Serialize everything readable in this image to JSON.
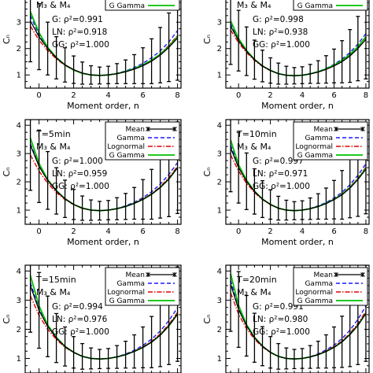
{
  "chart_data": [
    {
      "type": "line",
      "annotations": [
        "M₃ & M₄",
        "G: ρ²=0.991",
        "LN: ρ²=0.918",
        "GG: ρ²=1.000"
      ],
      "legend": [
        "G Gamma"
      ],
      "xlabel": "Moment order, n",
      "ylabel": "Cₙ",
      "xticks": [
        "0",
        "2",
        "4",
        "6",
        "8"
      ],
      "yticks": [
        "1",
        "2",
        "3",
        "4"
      ],
      "xlim": [
        -0.8,
        8.2
      ],
      "ylim": [
        0.5,
        4.2
      ],
      "x": [
        -0.5,
        0,
        0.5,
        1,
        1.5,
        2,
        2.5,
        3,
        3.5,
        4,
        4.5,
        5,
        5.5,
        6,
        6.5,
        7,
        7.5,
        8
      ],
      "series": [
        {
          "name": "Mean",
          "values": [
            3.05,
            2.45,
            2.0,
            1.65,
            1.38,
            1.2,
            1.07,
            1.0,
            0.98,
            1.0,
            1.05,
            1.12,
            1.22,
            1.35,
            1.52,
            1.75,
            2.05,
            2.4
          ],
          "err": [
            1.55,
            1.25,
            1.0,
            0.8,
            0.65,
            0.52,
            0.42,
            0.35,
            0.32,
            0.33,
            0.38,
            0.45,
            0.55,
            0.68,
            0.85,
            1.05,
            1.3,
            1.6
          ]
        },
        {
          "name": "Gamma",
          "values": [
            3.25,
            2.52,
            2.02,
            1.65,
            1.38,
            1.19,
            1.06,
            1.0,
            0.98,
            1.0,
            1.06,
            1.15,
            1.28,
            1.44,
            1.65,
            1.91,
            2.25,
            2.68
          ]
        },
        {
          "name": "Lognormal",
          "values": [
            2.85,
            2.32,
            1.92,
            1.61,
            1.36,
            1.18,
            1.06,
            1.0,
            0.98,
            1.0,
            1.05,
            1.13,
            1.24,
            1.38,
            1.56,
            1.8,
            2.12,
            2.5
          ]
        },
        {
          "name": "G Gamma",
          "values": [
            3.4,
            2.6,
            2.05,
            1.66,
            1.38,
            1.19,
            1.06,
            1.0,
            0.98,
            1.0,
            1.05,
            1.13,
            1.24,
            1.38,
            1.56,
            1.79,
            2.08,
            2.45
          ]
        }
      ]
    },
    {
      "type": "line",
      "annotations": [
        "M₃ & M₄",
        "G: ρ²=0.998",
        "LN: ρ²=0.938",
        "GG: ρ²=1.000"
      ],
      "legend": [
        "G Gamma"
      ],
      "xlabel": "Moment order, n",
      "ylabel": "Cₙ",
      "xticks": [
        "0",
        "2",
        "4",
        "6",
        "8"
      ],
      "yticks": [
        "1",
        "2",
        "3",
        "4"
      ],
      "xlim": [
        -0.8,
        8.2
      ],
      "ylim": [
        0.5,
        4.2
      ],
      "x": [
        -0.5,
        0,
        0.5,
        1,
        1.5,
        2,
        2.5,
        3,
        3.5,
        4,
        4.5,
        5,
        5.5,
        6,
        6.5,
        7,
        7.5,
        8
      ],
      "series": [
        {
          "name": "Mean",
          "values": [
            2.85,
            2.3,
            1.9,
            1.58,
            1.34,
            1.17,
            1.05,
            0.99,
            0.97,
            0.99,
            1.04,
            1.11,
            1.21,
            1.34,
            1.5,
            1.72,
            2.0,
            2.35
          ],
          "err": [
            1.45,
            1.15,
            0.92,
            0.74,
            0.6,
            0.48,
            0.4,
            0.34,
            0.31,
            0.32,
            0.36,
            0.43,
            0.52,
            0.64,
            0.8,
            1.0,
            1.22,
            1.5
          ]
        },
        {
          "name": "Gamma",
          "values": [
            2.95,
            2.35,
            1.92,
            1.59,
            1.34,
            1.17,
            1.05,
            0.99,
            0.97,
            0.99,
            1.05,
            1.13,
            1.25,
            1.4,
            1.6,
            1.85,
            2.17,
            2.57
          ]
        },
        {
          "name": "Lognormal",
          "values": [
            2.7,
            2.22,
            1.85,
            1.55,
            1.32,
            1.16,
            1.05,
            0.99,
            0.97,
            0.99,
            1.04,
            1.12,
            1.22,
            1.36,
            1.54,
            1.77,
            2.06,
            2.42
          ]
        },
        {
          "name": "G Gamma",
          "values": [
            3.05,
            2.38,
            1.93,
            1.59,
            1.34,
            1.17,
            1.05,
            0.99,
            0.97,
            0.99,
            1.04,
            1.12,
            1.23,
            1.37,
            1.55,
            1.78,
            2.07,
            2.45
          ]
        }
      ]
    },
    {
      "type": "line",
      "annotations": [
        "T=5min",
        "M₃ & M₄",
        "G: ρ²=1.000",
        "LN: ρ²=0.959",
        "GG: ρ²=1.000"
      ],
      "legend": [
        "Mean",
        "Gamma",
        "Lognormal",
        "G Gamma"
      ],
      "xlabel": "Moment order, n",
      "ylabel": "Cₙ",
      "xticks": [
        "0",
        "2",
        "4",
        "6",
        "8"
      ],
      "yticks": [
        "1",
        "2",
        "3",
        "4"
      ],
      "xlim": [
        -0.8,
        8.2
      ],
      "ylim": [
        0.5,
        4.2
      ],
      "x": [
        -0.5,
        0,
        0.5,
        1,
        1.5,
        2,
        2.5,
        3,
        3.5,
        4,
        4.5,
        5,
        5.5,
        6,
        6.5,
        7,
        7.5,
        8
      ],
      "series": [
        {
          "name": "Mean",
          "values": [
            3.3,
            2.55,
            2.05,
            1.68,
            1.4,
            1.2,
            1.07,
            1.0,
            0.98,
            1.0,
            1.05,
            1.13,
            1.24,
            1.38,
            1.56,
            1.8,
            2.1,
            2.5
          ],
          "err": [
            1.6,
            1.28,
            1.02,
            0.82,
            0.66,
            0.53,
            0.43,
            0.36,
            0.33,
            0.34,
            0.39,
            0.46,
            0.56,
            0.7,
            0.88,
            1.08,
            1.33,
            1.62
          ]
        },
        {
          "name": "Gamma",
          "values": [
            3.35,
            2.57,
            2.05,
            1.68,
            1.4,
            1.2,
            1.07,
            1.0,
            0.98,
            1.0,
            1.06,
            1.15,
            1.28,
            1.44,
            1.65,
            1.92,
            2.26,
            2.68
          ]
        },
        {
          "name": "Lognormal",
          "values": [
            2.95,
            2.38,
            1.95,
            1.62,
            1.37,
            1.19,
            1.06,
            1.0,
            0.98,
            1.0,
            1.05,
            1.13,
            1.25,
            1.4,
            1.58,
            1.83,
            2.15,
            2.55
          ]
        },
        {
          "name": "G Gamma",
          "values": [
            3.55,
            2.65,
            2.08,
            1.69,
            1.4,
            1.2,
            1.07,
            1.0,
            0.98,
            1.0,
            1.05,
            1.13,
            1.24,
            1.38,
            1.56,
            1.8,
            2.1,
            2.5
          ]
        }
      ]
    },
    {
      "type": "line",
      "annotations": [
        "T=10min",
        "M₃ & M₄",
        "G: ρ²=0.997",
        "LN: ρ²=0.971",
        "GG: ρ²=1.000"
      ],
      "legend": [
        "Mean",
        "Gamma",
        "Lognormal",
        "G Gamma"
      ],
      "xlabel": "Moment order, n",
      "ylabel": "Cₙ",
      "xticks": [
        "0",
        "2",
        "4",
        "6",
        "8"
      ],
      "yticks": [
        "1",
        "2",
        "3",
        "4"
      ],
      "xlim": [
        -0.8,
        8.2
      ],
      "ylim": [
        0.5,
        4.2
      ],
      "x": [
        -0.5,
        0,
        0.5,
        1,
        1.5,
        2,
        2.5,
        3,
        3.5,
        4,
        4.5,
        5,
        5.5,
        6,
        6.5,
        7,
        7.5,
        8
      ],
      "series": [
        {
          "name": "Mean",
          "values": [
            3.2,
            2.5,
            2.02,
            1.66,
            1.39,
            1.2,
            1.07,
            1.0,
            0.98,
            1.0,
            1.05,
            1.13,
            1.23,
            1.37,
            1.54,
            1.78,
            2.08,
            2.45
          ],
          "err": [
            1.55,
            1.25,
            1.0,
            0.8,
            0.65,
            0.52,
            0.42,
            0.35,
            0.32,
            0.33,
            0.38,
            0.45,
            0.55,
            0.68,
            0.86,
            1.05,
            1.3,
            1.58
          ]
        },
        {
          "name": "Gamma",
          "values": [
            3.3,
            2.54,
            2.03,
            1.66,
            1.39,
            1.2,
            1.07,
            1.0,
            0.98,
            1.0,
            1.06,
            1.15,
            1.27,
            1.43,
            1.63,
            1.9,
            2.23,
            2.64
          ]
        },
        {
          "name": "Lognormal",
          "values": [
            2.95,
            2.38,
            1.95,
            1.62,
            1.37,
            1.19,
            1.06,
            1.0,
            0.98,
            1.0,
            1.05,
            1.13,
            1.24,
            1.39,
            1.57,
            1.82,
            2.13,
            2.52
          ]
        },
        {
          "name": "G Gamma",
          "values": [
            3.48,
            2.6,
            2.06,
            1.67,
            1.39,
            1.2,
            1.07,
            1.0,
            0.98,
            1.0,
            1.05,
            1.13,
            1.24,
            1.38,
            1.56,
            1.8,
            2.1,
            2.48
          ]
        }
      ]
    },
    {
      "type": "line",
      "annotations": [
        "T=15min",
        "M₃ & M₄",
        "G: ρ²=0.994",
        "LN: ρ²=0.976",
        "GG: ρ²=1.000"
      ],
      "legend": [
        "Mean",
        "Gamma",
        "Lognormal",
        "G Gamma"
      ],
      "xlabel": "",
      "ylabel": "Cₙ",
      "xticks": [],
      "yticks": [
        "1",
        "2",
        "3",
        "4"
      ],
      "xlim": [
        -0.8,
        8.2
      ],
      "ylim": [
        0.5,
        4.2
      ],
      "x": [
        -0.5,
        0,
        0.5,
        1,
        1.5,
        2,
        2.5,
        3,
        3.5,
        4,
        4.5,
        5,
        5.5,
        6,
        6.5,
        7,
        7.5,
        8
      ],
      "series": [
        {
          "name": "Mean",
          "values": [
            3.5,
            2.65,
            2.1,
            1.7,
            1.41,
            1.21,
            1.07,
            1.0,
            0.98,
            1.0,
            1.05,
            1.13,
            1.24,
            1.38,
            1.56,
            1.8,
            2.12,
            2.52
          ],
          "err": [
            1.6,
            1.3,
            1.04,
            0.84,
            0.67,
            0.54,
            0.44,
            0.36,
            0.33,
            0.34,
            0.39,
            0.46,
            0.57,
            0.7,
            0.88,
            1.08,
            1.33,
            1.62
          ]
        },
        {
          "name": "Gamma",
          "values": [
            3.6,
            2.7,
            2.12,
            1.71,
            1.41,
            1.21,
            1.07,
            1.0,
            0.98,
            1.0,
            1.06,
            1.15,
            1.28,
            1.45,
            1.66,
            1.94,
            2.3,
            2.74
          ]
        },
        {
          "name": "Lognormal",
          "values": [
            3.15,
            2.48,
            2.0,
            1.65,
            1.38,
            1.2,
            1.07,
            1.0,
            0.98,
            1.0,
            1.05,
            1.13,
            1.25,
            1.4,
            1.59,
            1.84,
            2.17,
            2.58
          ]
        },
        {
          "name": "G Gamma",
          "values": [
            3.85,
            2.8,
            2.15,
            1.72,
            1.41,
            1.21,
            1.07,
            1.0,
            0.98,
            1.0,
            1.05,
            1.13,
            1.24,
            1.38,
            1.56,
            1.8,
            2.12,
            2.52
          ]
        }
      ]
    },
    {
      "type": "line",
      "annotations": [
        "T=20min",
        "M₃ & M₄",
        "G: ρ²=0.991",
        "LN: ρ²=0.980",
        "GG: ρ²=1.000"
      ],
      "legend": [
        "Mean",
        "Gamma",
        "Lognormal",
        "G Gamma"
      ],
      "xlabel": "",
      "ylabel": "Cₙ",
      "xticks": [],
      "yticks": [
        "1",
        "2",
        "3",
        "4"
      ],
      "xlim": [
        -0.8,
        8.2
      ],
      "ylim": [
        0.5,
        4.2
      ],
      "x": [
        -0.5,
        0,
        0.5,
        1,
        1.5,
        2,
        2.5,
        3,
        3.5,
        4,
        4.5,
        5,
        5.5,
        6,
        6.5,
        7,
        7.5,
        8
      ],
      "series": [
        {
          "name": "Mean",
          "values": [
            3.55,
            2.68,
            2.12,
            1.71,
            1.42,
            1.21,
            1.07,
            1.0,
            0.98,
            1.0,
            1.05,
            1.13,
            1.24,
            1.38,
            1.57,
            1.82,
            2.14,
            2.55
          ],
          "err": [
            1.62,
            1.3,
            1.04,
            0.84,
            0.67,
            0.54,
            0.44,
            0.36,
            0.33,
            0.34,
            0.39,
            0.46,
            0.57,
            0.7,
            0.88,
            1.1,
            1.35,
            1.65
          ]
        },
        {
          "name": "Gamma",
          "values": [
            3.68,
            2.73,
            2.13,
            1.72,
            1.42,
            1.21,
            1.07,
            1.0,
            0.98,
            1.0,
            1.06,
            1.16,
            1.29,
            1.46,
            1.68,
            1.97,
            2.34,
            2.8
          ]
        },
        {
          "name": "Lognormal",
          "values": [
            3.25,
            2.52,
            2.02,
            1.66,
            1.39,
            1.2,
            1.07,
            1.0,
            0.98,
            1.0,
            1.05,
            1.14,
            1.26,
            1.41,
            1.6,
            1.86,
            2.2,
            2.62
          ]
        },
        {
          "name": "G Gamma",
          "values": [
            3.9,
            2.82,
            2.16,
            1.73,
            1.42,
            1.21,
            1.07,
            1.0,
            0.98,
            1.0,
            1.05,
            1.13,
            1.24,
            1.38,
            1.57,
            1.82,
            2.14,
            2.55
          ]
        }
      ]
    }
  ],
  "colors": {
    "Mean": "#000000",
    "Gamma": "#1a1aff",
    "Lognormal": "#e00000",
    "G Gamma": "#00c000"
  }
}
